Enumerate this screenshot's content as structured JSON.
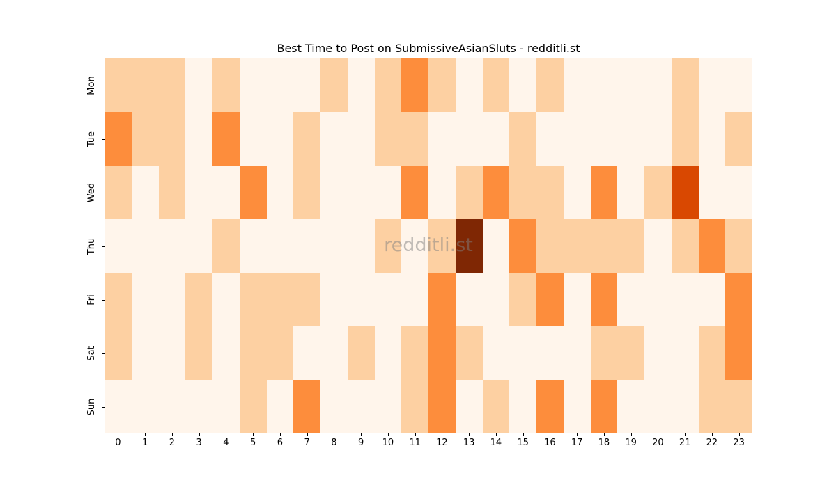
{
  "chart_data": {
    "type": "heatmap",
    "title": "Best Time to Post on SubmissiveAsianSluts - redditli.st",
    "xlabel": "",
    "ylabel": "",
    "x": [
      0,
      1,
      2,
      3,
      4,
      5,
      6,
      7,
      8,
      9,
      10,
      11,
      12,
      13,
      14,
      15,
      16,
      17,
      18,
      19,
      20,
      21,
      22,
      23
    ],
    "y": [
      "Mon",
      "Tue",
      "Wed",
      "Thu",
      "Fri",
      "Sat",
      "Sun"
    ],
    "values": [
      [
        1,
        1,
        1,
        0,
        1,
        0,
        0,
        0,
        1,
        0,
        1,
        2,
        1,
        0,
        1,
        0,
        1,
        0,
        0,
        0,
        0,
        1,
        0,
        0
      ],
      [
        2,
        1,
        1,
        0,
        2,
        0,
        0,
        1,
        0,
        0,
        1,
        1,
        0,
        0,
        0,
        1,
        0,
        0,
        0,
        0,
        0,
        1,
        0,
        1
      ],
      [
        1,
        0,
        1,
        0,
        0,
        2,
        0,
        1,
        0,
        0,
        0,
        2,
        0,
        1,
        2,
        1,
        1,
        0,
        2,
        0,
        1,
        3,
        0,
        0
      ],
      [
        0,
        0,
        0,
        0,
        1,
        0,
        0,
        0,
        0,
        0,
        1,
        0,
        1,
        4,
        0,
        2,
        1,
        1,
        1,
        1,
        0,
        1,
        2,
        1
      ],
      [
        1,
        0,
        0,
        1,
        0,
        1,
        1,
        1,
        0,
        0,
        0,
        0,
        2,
        0,
        0,
        1,
        2,
        0,
        2,
        0,
        0,
        0,
        0,
        2
      ],
      [
        1,
        0,
        0,
        1,
        0,
        1,
        1,
        0,
        0,
        1,
        0,
        1,
        2,
        1,
        0,
        0,
        0,
        0,
        1,
        1,
        0,
        0,
        1,
        2
      ],
      [
        0,
        0,
        0,
        0,
        0,
        1,
        0,
        2,
        0,
        0,
        0,
        1,
        2,
        0,
        1,
        0,
        2,
        0,
        2,
        0,
        0,
        0,
        1,
        1
      ]
    ],
    "colormap": "Oranges",
    "colorscale": [
      "#fff5eb",
      "#fdd0a2",
      "#fd8d3c",
      "#d94801",
      "#7f2704"
    ],
    "colorbar": false,
    "grid": false,
    "watermark": "redditli.st"
  }
}
